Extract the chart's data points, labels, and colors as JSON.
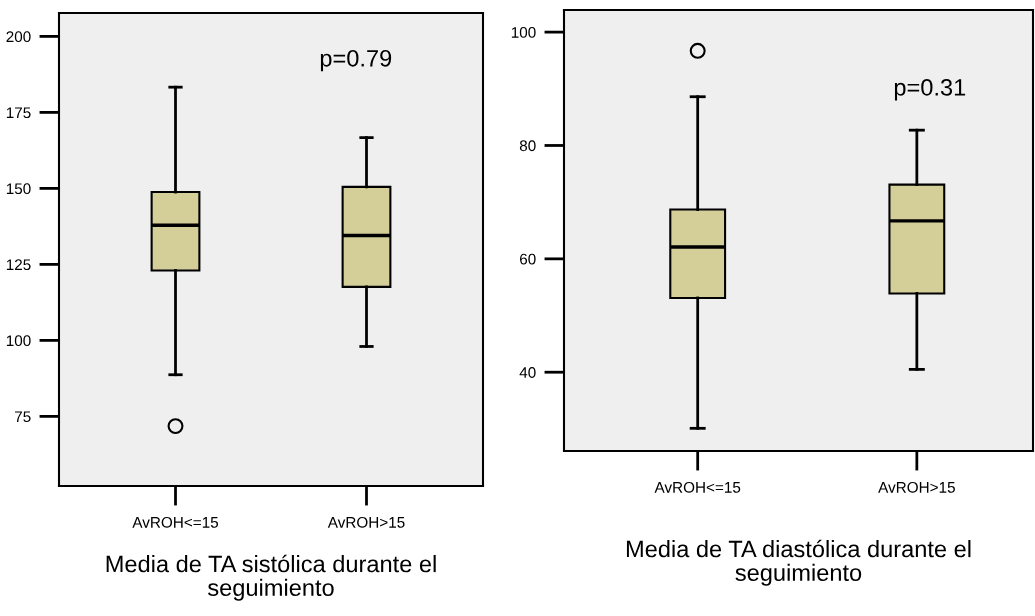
{
  "chart_data": [
    {
      "type": "box",
      "categories": [
        "AvROH<=15",
        "AvROH>15"
      ],
      "xlabel": "Media de TA sistólica durante el seguimiento",
      "ylim": [
        52.1,
        207.7
      ],
      "yticks": [
        75,
        100,
        125,
        150,
        175,
        200
      ],
      "grid": false,
      "annotations": [
        "p=0.79"
      ],
      "series": [
        {
          "color": "#d4cf99",
          "boxes": [
            {
              "low": 88.7,
              "q1": 123.0,
              "median": 137.9,
              "q3": 148.8,
              "high": 183.3,
              "outliers": [
                71.8
              ]
            },
            {
              "low": 98.0,
              "q1": 117.6,
              "median": 134.5,
              "q3": 150.5,
              "high": 166.7
            }
          ]
        }
      ]
    },
    {
      "type": "box",
      "categories": [
        "AvROH<=15",
        "AvROH>15"
      ],
      "xlabel": "Media de TA diastólica durante el seguimiento",
      "ylim": [
        26.1,
        103.9
      ],
      "yticks": [
        40,
        60,
        80,
        100
      ],
      "grid": false,
      "annotations": [
        "p=0.31"
      ],
      "series": [
        {
          "color": "#d4cf99",
          "boxes": [
            {
              "low": 30.1,
              "q1": 53.1,
              "median": 62.1,
              "q3": 68.7,
              "high": 88.6,
              "outliers": [
                96.7
              ]
            },
            {
              "low": 40.5,
              "q1": 53.9,
              "median": 66.7,
              "q3": 73.1,
              "high": 82.7
            }
          ]
        }
      ]
    }
  ]
}
